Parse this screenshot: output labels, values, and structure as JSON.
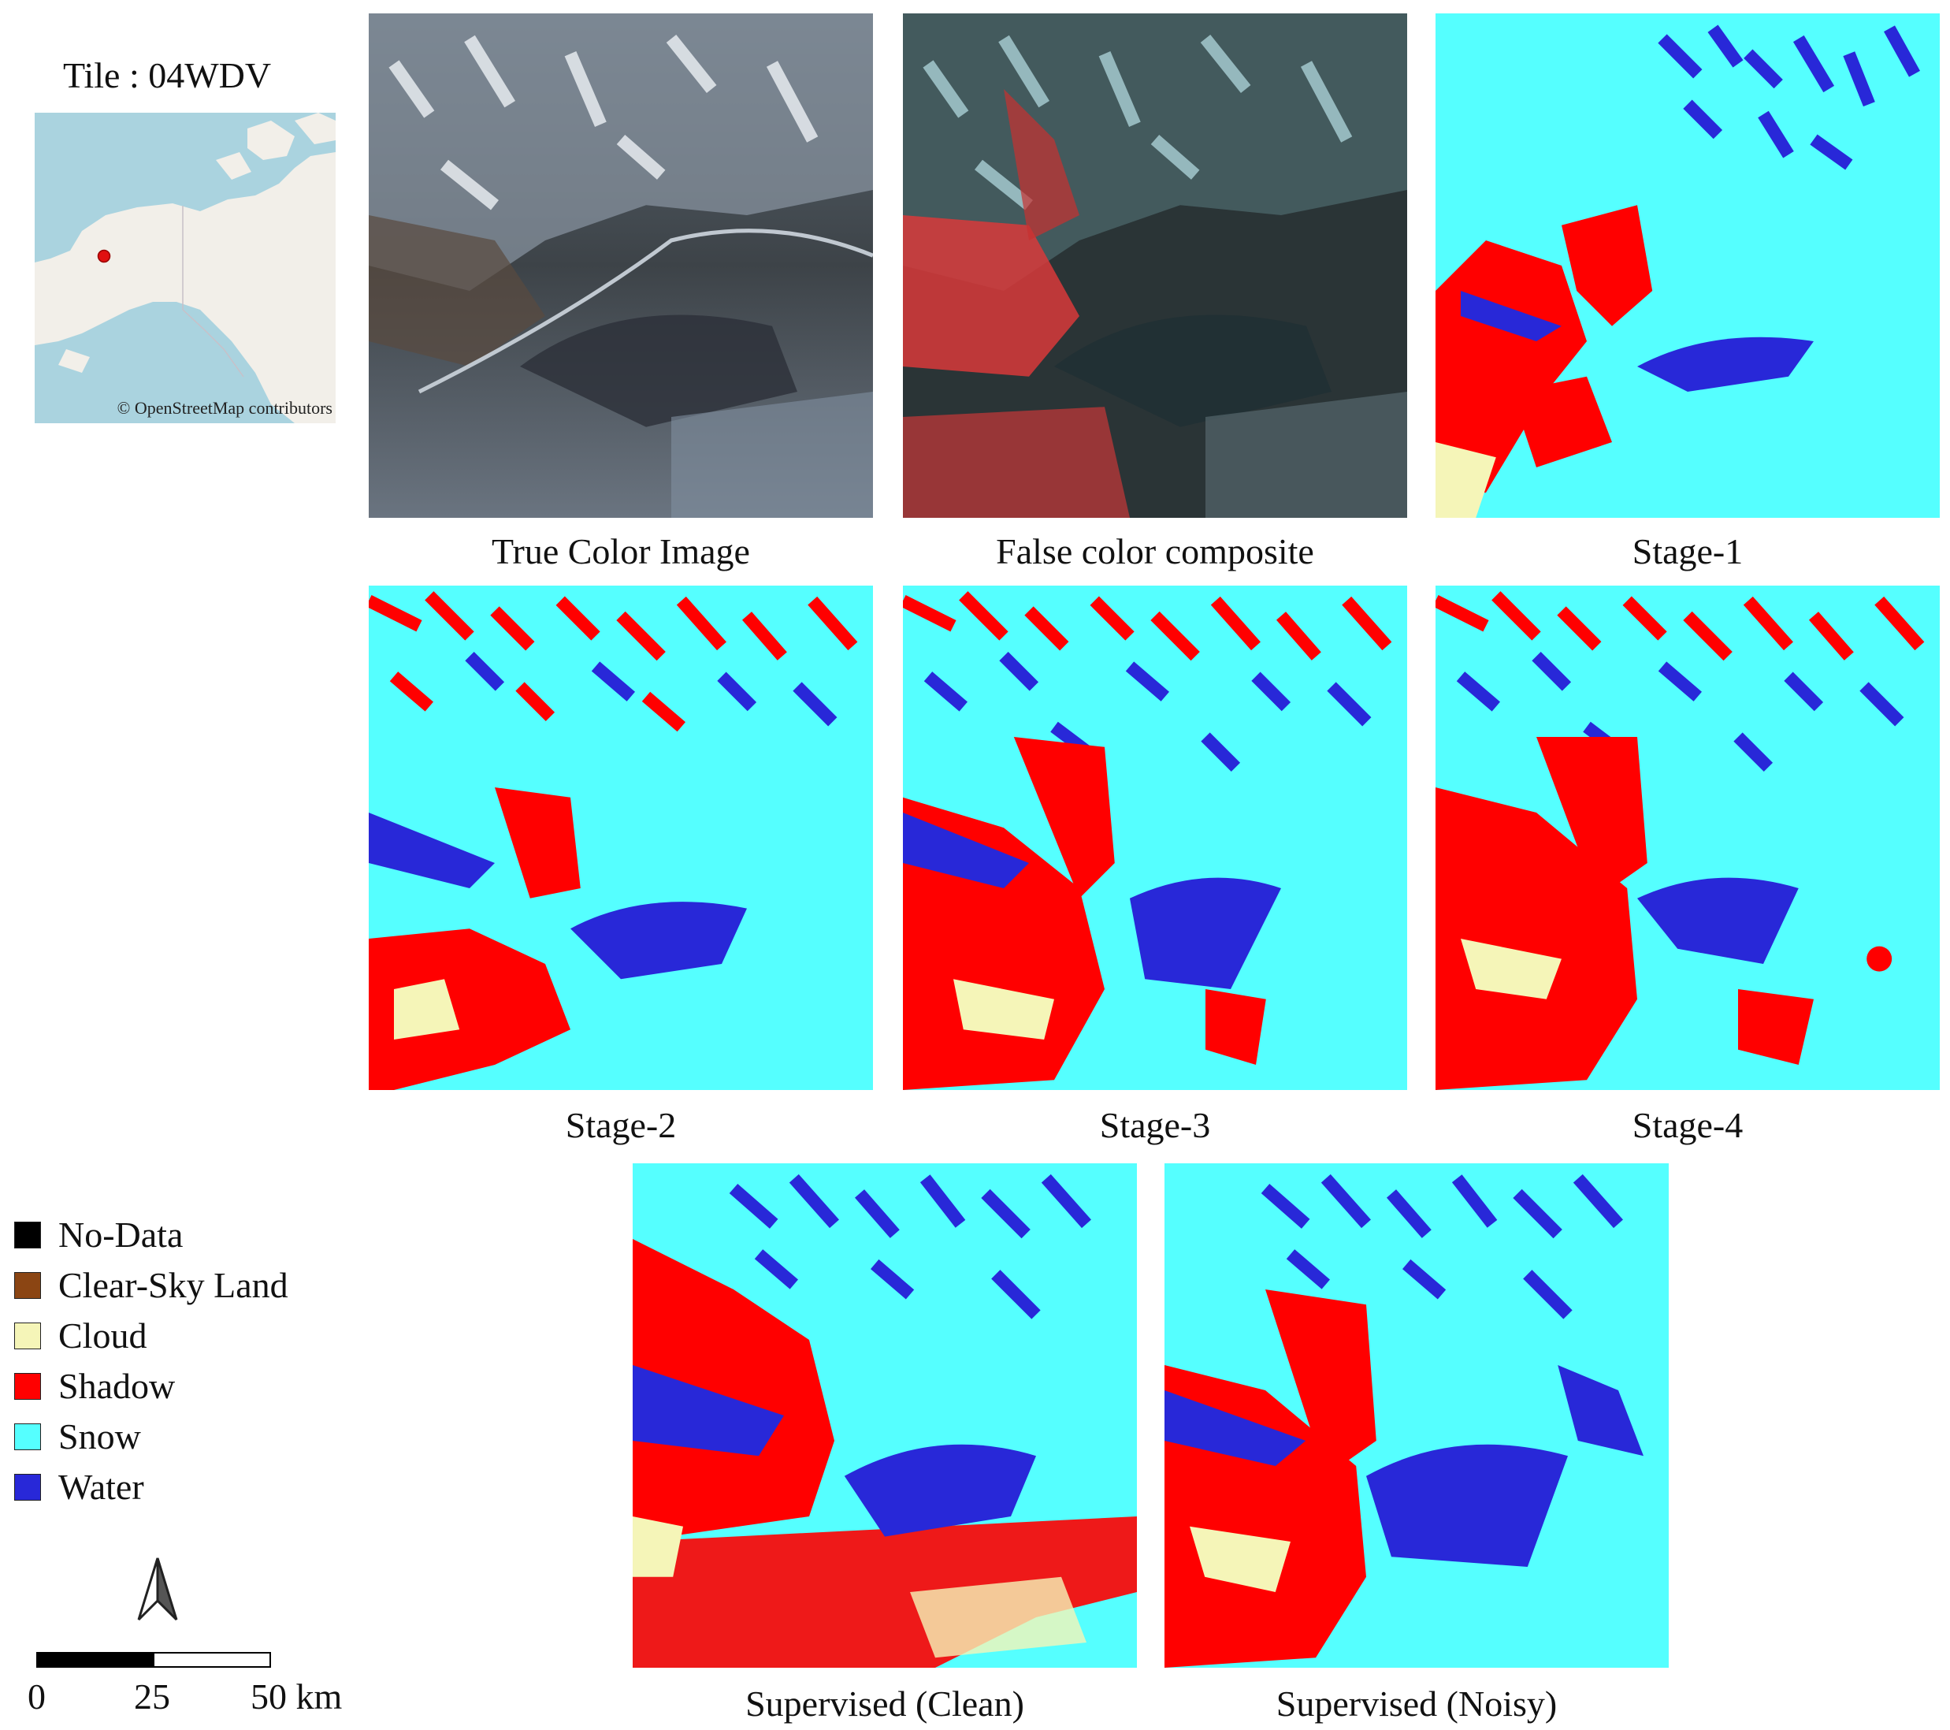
{
  "locator": {
    "title": "Tile : 04WDV",
    "attribution": "© OpenStreetMap contributors",
    "colors": {
      "ocean": "#aad3df",
      "land": "#f2efe9",
      "marker": "#e01010"
    }
  },
  "panels": [
    {
      "id": "true-color",
      "caption": "True Color Image"
    },
    {
      "id": "false-color",
      "caption": "False color composite"
    },
    {
      "id": "stage-1",
      "caption": "Stage-1"
    },
    {
      "id": "stage-2",
      "caption": "Stage-2"
    },
    {
      "id": "stage-3",
      "caption": "Stage-3"
    },
    {
      "id": "stage-4",
      "caption": "Stage-4"
    },
    {
      "id": "supervised-clean",
      "caption": "Supervised (Clean)"
    },
    {
      "id": "supervised-noisy",
      "caption": "Supervised (Noisy)"
    }
  ],
  "legend": {
    "items": [
      {
        "label": "No-Data",
        "color": "#000000"
      },
      {
        "label": "Clear-Sky Land",
        "color": "#8b4513"
      },
      {
        "label": "Cloud",
        "color": "#f5f5b8"
      },
      {
        "label": "Shadow",
        "color": "#ff0000"
      },
      {
        "label": "Snow",
        "color": "#55ffff"
      },
      {
        "label": "Water",
        "color": "#2828d8"
      }
    ]
  },
  "scale_bar": {
    "ticks": [
      "0",
      "25",
      "50 km"
    ]
  }
}
